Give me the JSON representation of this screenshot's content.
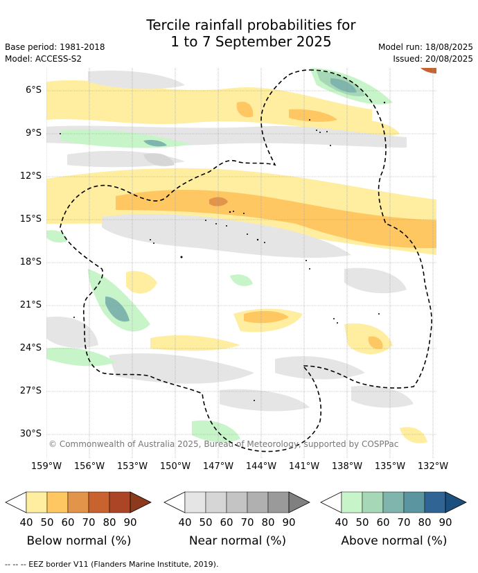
{
  "title_line1": "Tercile rainfall probabilities for",
  "title_line2": "1 to 7 September 2025",
  "base_period": "Base period: 1981-2018",
  "model": "Model: ACCESS-S2",
  "model_run": "Model run: 18/08/2025",
  "issued": "Issued: 20/08/2025",
  "copyright": "© Commonwealth of Australia 2025, Bureau of Meteorology, supported by COSPPac",
  "footer": "--  --  -- EEZ border V11 (Flanders Marine Institute, 2019).",
  "map": {
    "lat_ticks": [
      "6°S",
      "9°S",
      "12°S",
      "15°S",
      "18°S",
      "21°S",
      "24°S",
      "27°S",
      "30°S"
    ],
    "lon_ticks": [
      "159°W",
      "156°W",
      "153°W",
      "150°W",
      "147°W",
      "144°W",
      "141°W",
      "138°W",
      "135°W",
      "132°W"
    ],
    "colors": {
      "below": [
        "#ffeda0",
        "#fec761",
        "#e1944a",
        "#c8622f",
        "#ab4525",
        "#8b3a1c"
      ],
      "near": [
        "#e5e5e5",
        "#d6d6d6",
        "#c4c4c4",
        "#b0b0b0",
        "#9a9a9a",
        "#808080"
      ],
      "above": [
        "#c7f5c9",
        "#a6d8b8",
        "#7fb5ac",
        "#5a95a0",
        "#2f6495",
        "#1b4f7d"
      ]
    }
  },
  "legends": [
    {
      "title": "Below normal (%)",
      "ticks": [
        "40",
        "50",
        "60",
        "70",
        "80",
        "90"
      ]
    },
    {
      "title": "Near normal (%)",
      "ticks": [
        "40",
        "50",
        "60",
        "70",
        "80",
        "90"
      ]
    },
    {
      "title": "Above normal (%)",
      "ticks": [
        "40",
        "50",
        "60",
        "70",
        "80",
        "90"
      ]
    }
  ]
}
